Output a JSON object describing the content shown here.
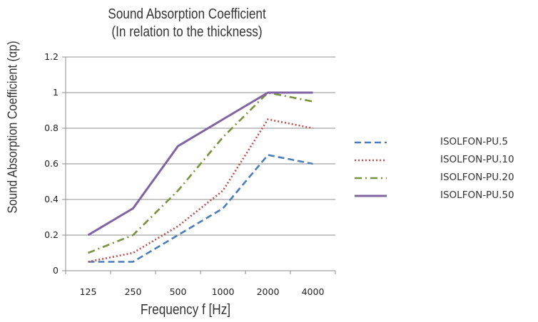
{
  "chart_data": {
    "type": "line",
    "title": "Sound Absorption Coefficient",
    "subtitle": "(In relation to the thickness)",
    "xlabel": "Frequency f [Hz]",
    "ylabel": "Sound Absorption Coefficient (αp)",
    "categories": [
      "125",
      "250",
      "500",
      "1000",
      "2000",
      "4000"
    ],
    "ylim": [
      0,
      1.2
    ],
    "yticks": [
      "0",
      "0.2",
      "0.4",
      "0.6",
      "0.8",
      "1",
      "1.2"
    ],
    "grid": "horizontal",
    "legend_position": "right",
    "series": [
      {
        "name": "ISOLFON-PU.5",
        "values": [
          0.05,
          0.05,
          0.2,
          0.35,
          0.65,
          0.6
        ],
        "color": "#4A7EBB",
        "dash": "dashed"
      },
      {
        "name": "ISOLFON-PU.10",
        "values": [
          0.05,
          0.1,
          0.25,
          0.45,
          0.85,
          0.8
        ],
        "color": "#C0504D",
        "dash": "dotted"
      },
      {
        "name": "ISOLFON-PU.20",
        "values": [
          0.1,
          0.2,
          0.45,
          0.75,
          1.0,
          0.95
        ],
        "color": "#77933C",
        "dash": "dash-dot"
      },
      {
        "name": "ISOLFON-PU.50",
        "values": [
          0.2,
          0.35,
          0.7,
          0.85,
          1.0,
          1.0
        ],
        "color": "#8064A2",
        "dash": "solid"
      }
    ]
  }
}
